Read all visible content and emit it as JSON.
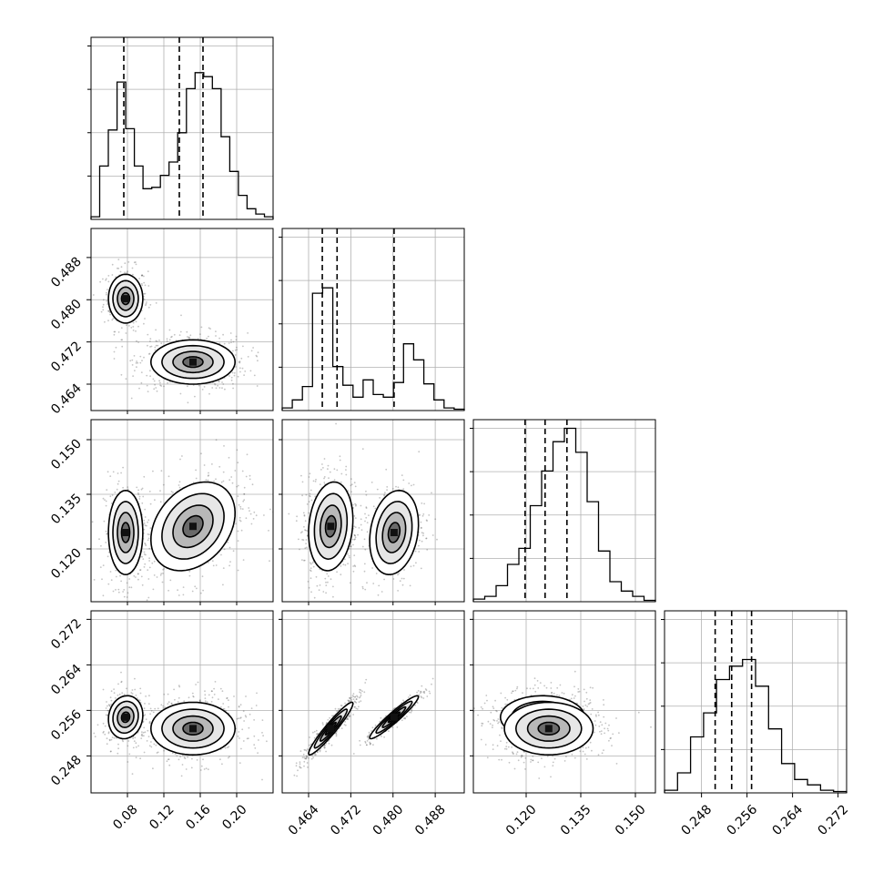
{
  "chart_data": {
    "type": "corner",
    "title": "",
    "grid": true,
    "colors": {
      "line": "#000000",
      "grid": "#b0b0b0",
      "background": "#ffffff",
      "points": "#555555"
    },
    "parameters": [
      {
        "index": 0,
        "range": [
          0.04,
          0.24
        ],
        "ticks": [
          "0.08",
          "0.12",
          "0.16",
          "0.20"
        ],
        "quantiles": [
          0.076,
          0.137,
          0.163
        ]
      },
      {
        "index": 1,
        "range": [
          0.459,
          0.4935
        ],
        "ticks": [
          "0.464",
          "0.472",
          "0.480",
          "0.488"
        ],
        "quantiles": [
          0.4666,
          0.4694,
          0.4802
        ]
      },
      {
        "index": 2,
        "range": [
          0.1055,
          0.1555
        ],
        "ticks": [
          "0.120",
          "0.135",
          "0.150"
        ],
        "quantiles": [
          0.1197,
          0.1252,
          0.1312
        ]
      },
      {
        "index": 3,
        "range": [
          0.2415,
          0.2735
        ],
        "ticks": [
          "0.248",
          "0.256",
          "0.264",
          "0.272"
        ],
        "quantiles": [
          0.2504,
          0.2533,
          0.2568
        ]
      }
    ],
    "histograms": [
      {
        "param": 0,
        "counts": [
          2,
          40,
          67,
          103,
          68,
          40,
          23,
          24,
          33,
          43,
          65,
          98,
          110,
          107,
          98,
          62,
          36,
          18,
          8,
          4,
          2
        ]
      },
      {
        "param": 1,
        "counts": [
          2,
          8,
          18,
          88,
          92,
          33,
          19,
          10,
          23,
          12,
          10,
          21,
          50,
          38,
          20,
          8,
          2,
          1
        ]
      },
      {
        "param": 2,
        "counts": [
          2,
          4,
          12,
          28,
          40,
          72,
          98,
          120,
          130,
          112,
          75,
          38,
          15,
          8,
          4,
          1
        ]
      },
      {
        "param": 3,
        "counts": [
          2,
          15,
          42,
          60,
          85,
          95,
          100,
          80,
          48,
          22,
          10,
          6,
          2,
          1
        ]
      }
    ],
    "histogram_ylim": [
      0,
      130
    ],
    "clusters": [
      {
        "weight": 0.35,
        "mean": [
          0.078,
          0.4802,
          0.1245,
          0.2548
        ],
        "sd": [
          0.009,
          0.0022,
          0.0055,
          0.0018
        ],
        "corr": [
          [
            1,
            2,
            0.2
          ],
          [
            1,
            3,
            0.95
          ],
          [
            0,
            3,
            0.1
          ]
        ]
      },
      {
        "weight": 0.65,
        "mean": [
          0.152,
          0.4682,
          0.1262,
          0.2528
        ],
        "sd": [
          0.022,
          0.002,
          0.0058,
          0.0022
        ],
        "corr": [
          [
            1,
            2,
            0.15
          ],
          [
            1,
            3,
            0.95
          ],
          [
            0,
            2,
            0.3
          ]
        ]
      }
    ]
  }
}
